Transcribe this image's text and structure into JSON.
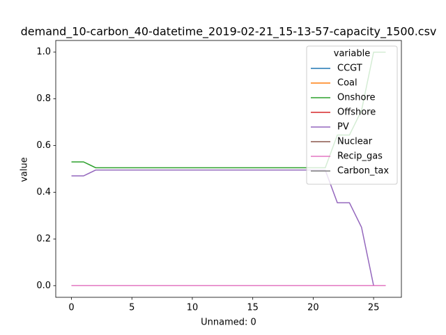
{
  "chart_data": {
    "type": "line",
    "title": "demand_10-carbon_40-datetime_2019-02-21_15-13-57-capacity_1500.csv",
    "xlabel": "Unnamed: 0",
    "ylabel": "value",
    "legend_title": "variable",
    "legend": "upper right",
    "grid": false,
    "x": [
      0,
      1,
      2,
      3,
      4,
      5,
      6,
      7,
      8,
      9,
      10,
      11,
      12,
      13,
      14,
      15,
      16,
      17,
      18,
      19,
      20,
      21,
      22,
      23,
      24,
      25,
      26
    ],
    "series": [
      {
        "name": "CCGT",
        "color": "#1f77b4",
        "values": [
          0,
          0,
          0,
          0,
          0,
          0,
          0,
          0,
          0,
          0,
          0,
          0,
          0,
          0,
          0,
          0,
          0,
          0,
          0,
          0,
          0,
          0,
          0,
          0,
          0,
          0,
          0
        ]
      },
      {
        "name": "Coal",
        "color": "#ff7f0e",
        "values": [
          0,
          0,
          0,
          0,
          0,
          0,
          0,
          0,
          0,
          0,
          0,
          0,
          0,
          0,
          0,
          0,
          0,
          0,
          0,
          0,
          0,
          0,
          0,
          0,
          0,
          0,
          0
        ]
      },
      {
        "name": "Onshore",
        "color": "#2ca02c",
        "values": [
          0.53,
          0.53,
          0.505,
          0.505,
          0.505,
          0.505,
          0.505,
          0.505,
          0.505,
          0.505,
          0.505,
          0.505,
          0.505,
          0.505,
          0.505,
          0.505,
          0.505,
          0.505,
          0.505,
          0.505,
          0.505,
          0.505,
          0.645,
          0.645,
          0.75,
          1.0,
          1.0
        ]
      },
      {
        "name": "Offshore",
        "color": "#d62728",
        "values": [
          0,
          0,
          0,
          0,
          0,
          0,
          0,
          0,
          0,
          0,
          0,
          0,
          0,
          0,
          0,
          0,
          0,
          0,
          0,
          0,
          0,
          0,
          0,
          0,
          0,
          0,
          0
        ]
      },
      {
        "name": "PV",
        "color": "#9467bd",
        "values": [
          0.47,
          0.47,
          0.495,
          0.495,
          0.495,
          0.495,
          0.495,
          0.495,
          0.495,
          0.495,
          0.495,
          0.495,
          0.495,
          0.495,
          0.495,
          0.495,
          0.495,
          0.495,
          0.495,
          0.495,
          0.495,
          0.495,
          0.355,
          0.355,
          0.25,
          0,
          0
        ]
      },
      {
        "name": "Nuclear",
        "color": "#8c564b",
        "values": [
          0,
          0,
          0,
          0,
          0,
          0,
          0,
          0,
          0,
          0,
          0,
          0,
          0,
          0,
          0,
          0,
          0,
          0,
          0,
          0,
          0,
          0,
          0,
          0,
          0,
          0,
          0
        ]
      },
      {
        "name": "Recip_gas",
        "color": "#e377c2",
        "values": [
          0,
          0,
          0,
          0,
          0,
          0,
          0,
          0,
          0,
          0,
          0,
          0,
          0,
          0,
          0,
          0,
          0,
          0,
          0,
          0,
          0,
          0,
          0,
          0,
          0,
          0,
          0
        ]
      },
      {
        "name": "Carbon_tax",
        "color": "#7f7f7f",
        "values": [
          null,
          null,
          null,
          null,
          null,
          null,
          null,
          null,
          null,
          null,
          null,
          null,
          null,
          null,
          null,
          null,
          null,
          null,
          null,
          null,
          null,
          null,
          null,
          null,
          null,
          null,
          null
        ]
      }
    ],
    "xlim": [
      -1.3,
      27.3
    ],
    "xticks": [
      0,
      5,
      10,
      15,
      20,
      25
    ],
    "ylim": [
      -0.05,
      1.05
    ],
    "yticks": [
      {
        "value": 0,
        "label": "0.0"
      },
      0.2,
      0.4,
      0.6,
      0.8,
      {
        "value": 1,
        "label": "1.0"
      }
    ]
  }
}
